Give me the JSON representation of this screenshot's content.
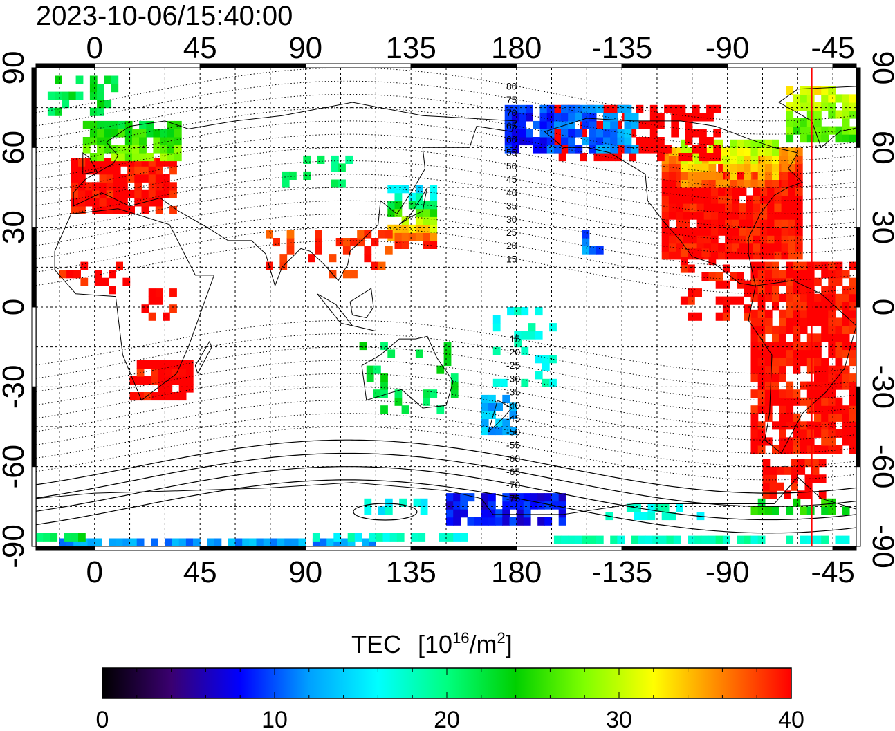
{
  "title": "2023-10-06/15:40:00",
  "top_lon_labels": [
    "0",
    "45",
    "90",
    "135",
    "180",
    "-135",
    "-90",
    "-45"
  ],
  "bottom_lon_labels": [
    "0",
    "45",
    "90",
    "135",
    "180",
    "-135",
    "-90",
    "-45"
  ],
  "left_lat_labels": [
    "90",
    "60",
    "30",
    "0",
    "-30",
    "-60",
    "-90"
  ],
  "right_lat_labels": [
    "90",
    "60",
    "30",
    "0",
    "-30",
    "-60",
    "-90"
  ],
  "maglat_labels": [
    "80",
    "75",
    "70",
    "65",
    "60",
    "55",
    "50",
    "45",
    "40",
    "35",
    "30",
    "25",
    "20",
    "15",
    "-15",
    "-20",
    "-25",
    "-30",
    "-35",
    "-40",
    "-45",
    "-50",
    "-55",
    "-60",
    "-65",
    "-70",
    "-75"
  ],
  "colorbar": {
    "title_main": "TEC",
    "title_open": "[10",
    "title_sup1": "16",
    "title_mid": "/m",
    "title_sup2": "2",
    "title_close": "]",
    "tick_labels": [
      "0",
      "10",
      "20",
      "30",
      "40"
    ],
    "min": 0,
    "max": 40,
    "colors": [
      "#000000",
      "#3a0070",
      "#0000ff",
      "#00a0ff",
      "#00ffff",
      "#00ff80",
      "#00d000",
      "#80ff00",
      "#ffff00",
      "#ff8000",
      "#ff0000"
    ]
  },
  "map": {
    "lon_range": [
      -25,
      325
    ],
    "lat_range": [
      -90,
      90
    ],
    "grid_spacing_deg": 15,
    "terminator_lon": -54,
    "terminator_color": "#ff0000"
  }
}
